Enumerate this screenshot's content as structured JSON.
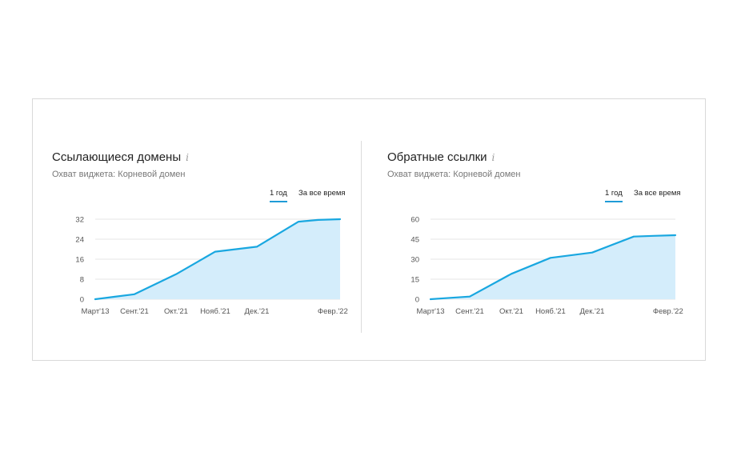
{
  "colors": {
    "line": "#19a7e0",
    "area": "#d4edfb",
    "grid": "#e6e6e6",
    "accent": "#1f9bd7"
  },
  "widgets": [
    {
      "title": "Ссылающиеся домены",
      "info_icon": "i",
      "subtitle": "Охват виджета: Корневой домен",
      "period_year": "1 год",
      "period_all": "За все время"
    },
    {
      "title": "Обратные ссылки",
      "info_icon": "i",
      "subtitle": "Охват виджета: Корневой домен",
      "period_year": "1 год",
      "period_all": "За все время"
    }
  ],
  "chart_data": [
    {
      "type": "area",
      "x_ticks": [
        "Март'13",
        "Сент.'21",
        "Окт.'21",
        "Нояб.'21",
        "Дек.'21",
        "Февр.'22"
      ],
      "x_tick_positions": [
        0,
        0.16,
        0.33,
        0.49,
        0.66,
        0.97
      ],
      "y_ticks": [
        0,
        8,
        16,
        24,
        32
      ],
      "ylim": [
        0,
        32
      ],
      "grid": true,
      "series": [
        {
          "x": [
            0,
            0.08,
            0.16,
            0.33,
            0.49,
            0.66,
            0.83,
            0.91,
            1.0
          ],
          "values": [
            0,
            1,
            2,
            10,
            19,
            21,
            31,
            31.7,
            32
          ]
        }
      ]
    },
    {
      "type": "area",
      "x_ticks": [
        "Март'13",
        "Сент.'21",
        "Окт.'21",
        "Нояб.'21",
        "Дек.'21",
        "Февр.'22"
      ],
      "x_tick_positions": [
        0,
        0.16,
        0.33,
        0.49,
        0.66,
        0.97
      ],
      "y_ticks": [
        0,
        15,
        30,
        45,
        60
      ],
      "ylim": [
        0,
        60
      ],
      "grid": true,
      "series": [
        {
          "x": [
            0,
            0.08,
            0.16,
            0.33,
            0.49,
            0.66,
            0.83,
            0.91,
            1.0
          ],
          "values": [
            0,
            1,
            2,
            19,
            31,
            35,
            47,
            47.5,
            48
          ]
        }
      ]
    }
  ]
}
